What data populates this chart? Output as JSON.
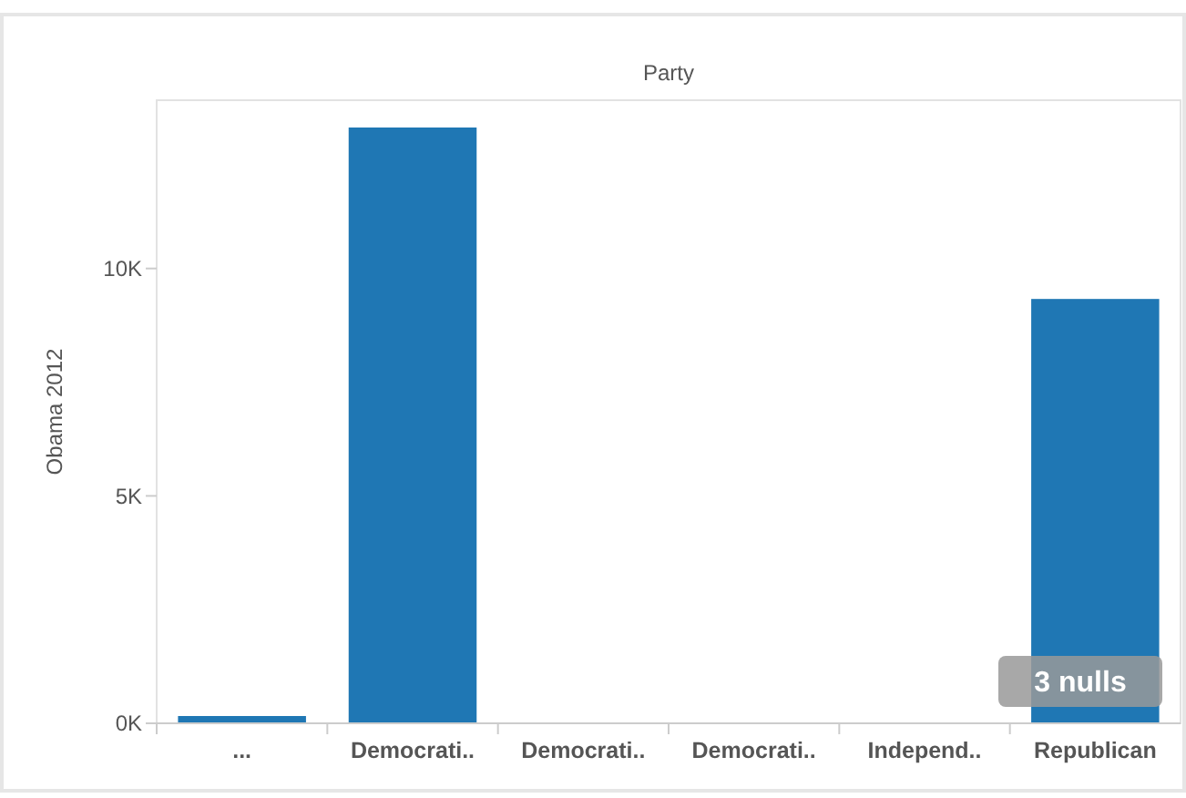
{
  "chart_data": {
    "type": "bar",
    "title": "Party",
    "ylabel": "Obama 2012",
    "categories": [
      "...",
      "Democrati..",
      "Democrati..",
      "Democrati..",
      "Independ..",
      "Republican"
    ],
    "values": [
      160,
      13100,
      null,
      null,
      null,
      9330
    ],
    "color": "#1f77b4",
    "ylim": [
      0,
      13700
    ],
    "yticks": [
      {
        "value": 0,
        "label": "0K"
      },
      {
        "value": 5000,
        "label": "5K"
      },
      {
        "value": 10000,
        "label": "10K"
      }
    ],
    "grid": false,
    "annotations": [
      "3 nulls"
    ]
  }
}
